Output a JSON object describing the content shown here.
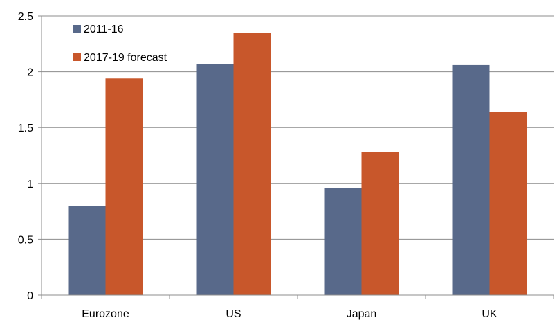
{
  "chart_data": {
    "type": "bar",
    "title": "",
    "xlabel": "",
    "ylabel": "",
    "categories": [
      "Eurozone",
      "US",
      "Japan",
      "UK"
    ],
    "series": [
      {
        "name": "2011-16",
        "color": "#58698a",
        "values": [
          0.8,
          2.07,
          0.96,
          2.06
        ]
      },
      {
        "name": "2017-19 forecast",
        "color": "#c8572b",
        "values": [
          1.94,
          2.35,
          1.28,
          1.64
        ]
      }
    ],
    "ylim": [
      0,
      2.5
    ],
    "yticks": [
      0,
      0.5,
      1,
      1.5,
      2,
      2.5
    ],
    "ytick_labels": [
      "0",
      "0.5",
      "1",
      "1.5",
      "2",
      "2.5"
    ],
    "grid": true,
    "legend_position": "top-left"
  }
}
